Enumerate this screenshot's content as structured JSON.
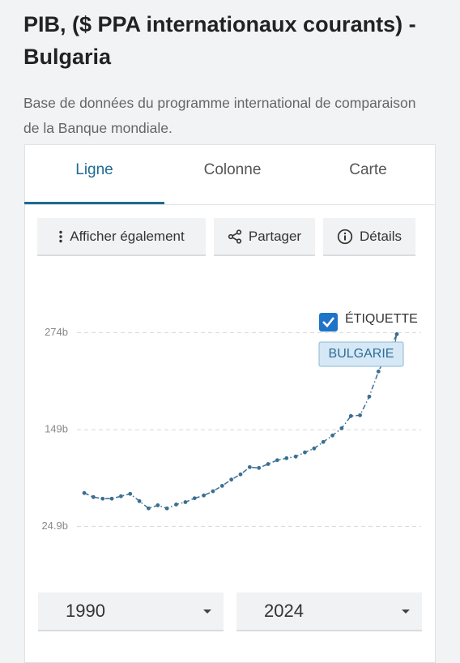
{
  "header": {
    "title": "PIB, ($ PPA internationaux courants) - Bulgaria",
    "subtitle": "Base de données du programme international de comparaison de la Banque mondiale."
  },
  "tabs": [
    "Ligne",
    "Colonne",
    "Carte"
  ],
  "buttons": [
    "Afficher également",
    "Partager",
    "Détails"
  ],
  "chart_data": {
    "type": "line",
    "x": [
      1990,
      1991,
      1992,
      1993,
      1994,
      1995,
      1996,
      1997,
      1998,
      1999,
      2000,
      2001,
      2002,
      2003,
      2004,
      2005,
      2006,
      2007,
      2008,
      2009,
      2010,
      2011,
      2012,
      2013,
      2014,
      2015,
      2016,
      2017,
      2018,
      2019,
      2020,
      2021,
      2022,
      2023,
      2024
    ],
    "series": [
      {
        "name": "BULGARIE",
        "color": "#3a6f92",
        "values": [
          67.7,
          62.5,
          60.5,
          60.5,
          63.6,
          66.7,
          57.3,
          48,
          52,
          48,
          53,
          56,
          61,
          64.6,
          70,
          77,
          85,
          91.7,
          101,
          100,
          105,
          110,
          112.5,
          114.6,
          120,
          125,
          133.4,
          141.7,
          151,
          166.7,
          167.7,
          191.7,
          224,
          248,
          272
        ]
      }
    ],
    "xlim": [
      1990,
      2024
    ],
    "ylim": [
      18,
      290
    ],
    "yticks": [
      {
        "value": 24.9,
        "label": "24.9b"
      },
      {
        "value": 149,
        "label": "149b"
      },
      {
        "value": 274,
        "label": "274b"
      }
    ],
    "grid": true,
    "label_toggle": "ÉTIQUETTE"
  },
  "range_selector": {
    "start": "1990",
    "end": "2024"
  }
}
